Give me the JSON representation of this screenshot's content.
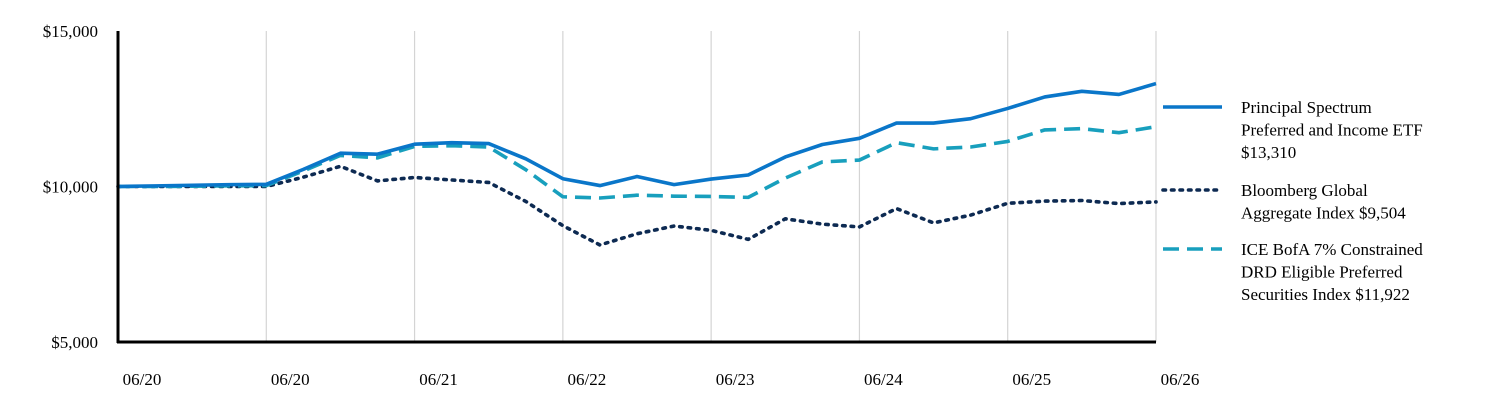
{
  "chart_data": {
    "type": "line",
    "title": "",
    "xlabel": "",
    "ylabel": "",
    "ylim": [
      5000,
      15000
    ],
    "y_ticks": [
      "$15,000",
      "$10,000",
      "$5,000"
    ],
    "y_tick_values": [
      15000,
      10000,
      5000
    ],
    "x_ticks": [
      "06/20",
      "06/20",
      "06/21",
      "06/22",
      "06/23",
      "06/24",
      "06/25",
      "06/26"
    ],
    "grid": "vertical",
    "legend_position": "right",
    "x": [
      0,
      0.25,
      0.5,
      0.75,
      1,
      1.25,
      1.5,
      1.75,
      2,
      2.25,
      2.5,
      2.75,
      3,
      3.25,
      3.5,
      3.75,
      4,
      4.25,
      4.5,
      4.75,
      5,
      5.25,
      5.5,
      5.75,
      6,
      6.25,
      6.5,
      6.75,
      7
    ],
    "series": [
      {
        "name": "Principal Spectrum Preferred and Income ETF $13,310",
        "legend_lines": [
          "Principal Spectrum",
          "Preferred and Income ETF",
          "$13,310"
        ],
        "color": "#0a76c9",
        "dash": "solid",
        "values": [
          10000,
          10020,
          10040,
          10060,
          10070,
          10550,
          11070,
          11040,
          11360,
          11410,
          11380,
          10890,
          10250,
          10030,
          10320,
          10060,
          10240,
          10370,
          10950,
          11350,
          11550,
          12040,
          12040,
          12180,
          12510,
          12880,
          13060,
          12960,
          13310
        ]
      },
      {
        "name": "Bloomberg Global Aggregate Index $9,504",
        "legend_lines": [
          "Bloomberg Global",
          "Aggregate Index $9,504"
        ],
        "color": "#0d2a52",
        "dash": "dotted",
        "values": [
          10000,
          10000,
          10000,
          10000,
          10000,
          10300,
          10650,
          10180,
          10290,
          10210,
          10130,
          9520,
          8740,
          8120,
          8480,
          8730,
          8590,
          8300,
          8960,
          8790,
          8700,
          9290,
          8830,
          9080,
          9460,
          9530,
          9550,
          9450,
          9504
        ]
      },
      {
        "name": "ICE BofA 7% Constrained DRD Eligible Preferred Securities Index $11,922",
        "legend_lines": [
          "ICE BofA 7% Constrained",
          "DRD Eligible Preferred",
          "Securities Index $11,922"
        ],
        "color": "#189fbd",
        "dash": "dashed",
        "values": [
          10000,
          10000,
          10010,
          10020,
          10030,
          10500,
          11000,
          10920,
          11290,
          11310,
          11270,
          10540,
          9670,
          9630,
          9720,
          9690,
          9680,
          9650,
          10270,
          10790,
          10850,
          11410,
          11210,
          11270,
          11450,
          11820,
          11860,
          11730,
          11922
        ]
      }
    ]
  }
}
